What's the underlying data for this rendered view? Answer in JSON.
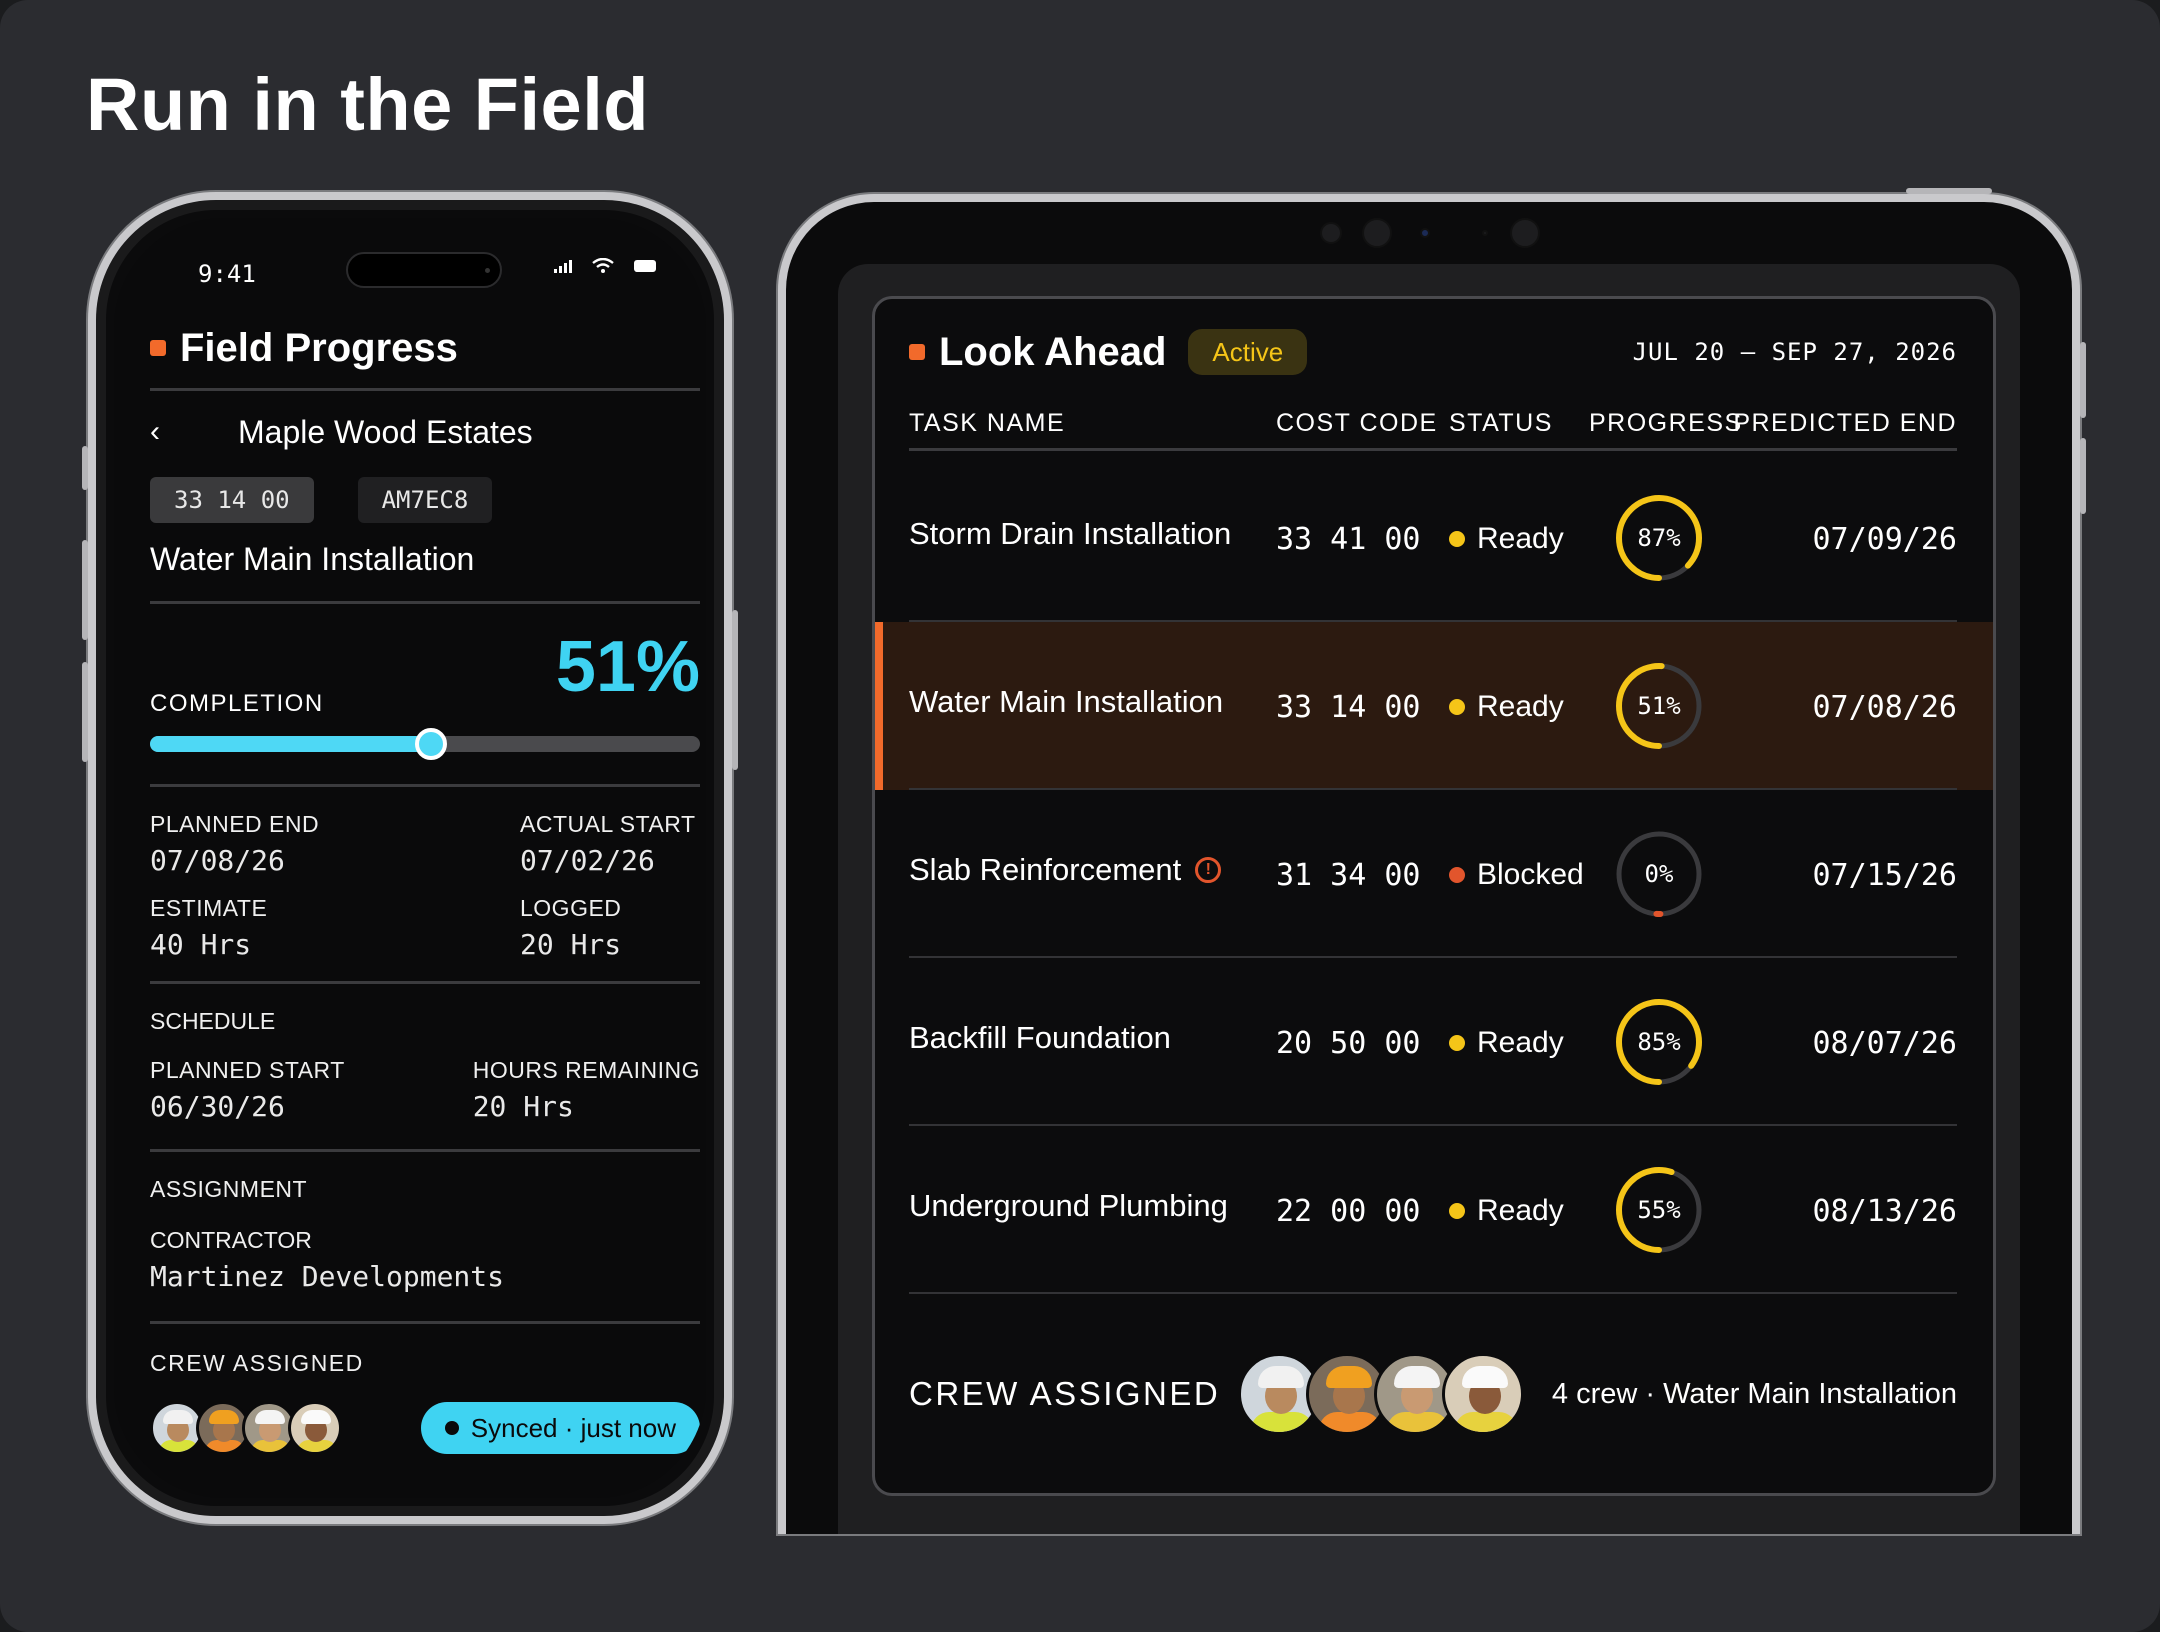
{
  "page": {
    "title": "Run in the Field"
  },
  "phone": {
    "status_time": "9:41",
    "header_title": "Field Progress",
    "project_name": "Maple Wood Estates",
    "chips": [
      "33 14 00",
      "AM7EC8"
    ],
    "task_name": "Water Main Installation",
    "completion": {
      "label": "COMPLETION",
      "value": "51%",
      "fraction": 0.51
    },
    "dates": {
      "planned_end_label": "PLANNED END",
      "planned_end": "07/08/26",
      "actual_start_label": "ACTUAL START",
      "actual_start": "07/02/26",
      "estimate_label": "ESTIMATE",
      "estimate": "40 Hrs",
      "logged_label": "LOGGED",
      "logged": "20 Hrs"
    },
    "schedule": {
      "title": "SCHEDULE",
      "planned_start_label": "PLANNED START",
      "planned_start": "06/30/26",
      "hours_remaining_label": "HOURS REMAINING",
      "hours_remaining": "20 Hrs"
    },
    "assignment": {
      "title": "ASSIGNMENT",
      "contractor_label": "CONTRACTOR",
      "contractor": "Martinez Developments"
    },
    "crew": {
      "title": "CREW ASSIGNED",
      "synced": "Synced · just now"
    }
  },
  "tablet": {
    "title": "Look Ahead",
    "badge": "Active",
    "date_range": "JUL 20 – SEP 27, 2026",
    "columns": [
      "TASK NAME",
      "COST CODE",
      "STATUS",
      "PROGRESS",
      "PREDICTED END"
    ],
    "rows": [
      {
        "name": "Storm Drain Installation",
        "code": "33 41 00",
        "status": "Ready",
        "progress": "87%",
        "progress_value": 87,
        "end": "07/09/26"
      },
      {
        "name": "Water Main Installation",
        "code": "33 14 00",
        "status": "Ready",
        "progress": "51%",
        "progress_value": 51,
        "end": "07/08/26"
      },
      {
        "name": "Slab Reinforcement",
        "code": "31 34 00",
        "status": "Blocked",
        "progress": "0%",
        "progress_value": 0,
        "end": "07/15/26"
      },
      {
        "name": "Backfill Foundation",
        "code": "20 50 00",
        "status": "Ready",
        "progress": "85%",
        "progress_value": 85,
        "end": "08/07/26"
      },
      {
        "name": "Underground Plumbing",
        "code": "22 00 00",
        "status": "Ready",
        "progress": "55%",
        "progress_value": 55,
        "end": "08/13/26"
      }
    ],
    "crew": {
      "title": "CREW ASSIGNED",
      "summary": "4 crew · Water Main Installation"
    }
  },
  "colors": {
    "accent_orange": "#f26a2b",
    "cyan": "#3fd3f2",
    "ready_yellow": "#f5c518",
    "blocked_red": "#e2552c"
  },
  "icons": [
    "back-chevron-icon",
    "warning-icon",
    "signal-icon",
    "wifi-icon",
    "battery-icon"
  ]
}
